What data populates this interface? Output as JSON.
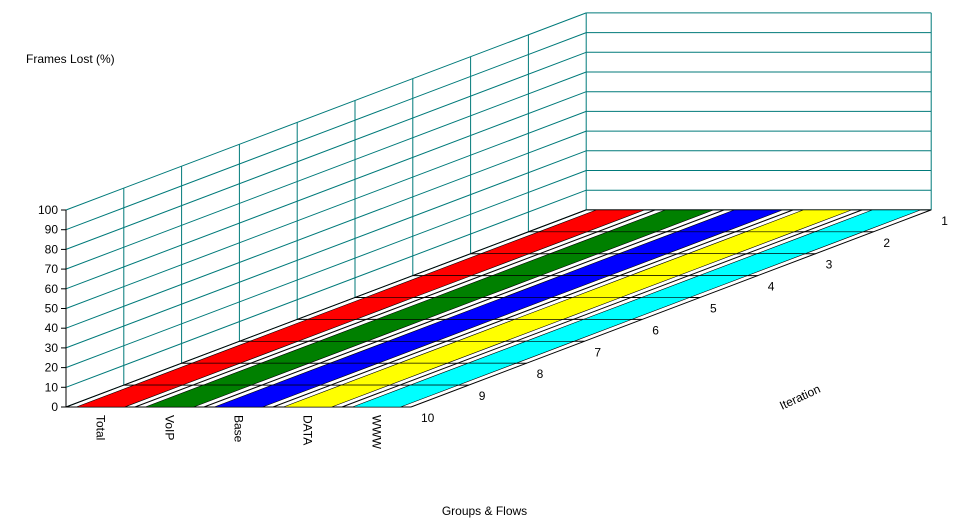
{
  "chart_data": {
    "type": "3d-ribbon",
    "ylabel": "Frames Lost (%)",
    "xlabel": "Groups & Flows",
    "zlabel": "Iteration",
    "ylim": [
      0,
      100
    ],
    "yticks": [
      "0",
      "10",
      "20",
      "30",
      "40",
      "50",
      "60",
      "70",
      "80",
      "90",
      "100"
    ],
    "groups": [
      "Total",
      "VoIP",
      "Base",
      "DATA",
      "WWW"
    ],
    "iterations": [
      "1",
      "2",
      "3",
      "4",
      "5",
      "6",
      "7",
      "8",
      "9",
      "10"
    ],
    "series": [
      {
        "name": "Total",
        "color": "#ff0000",
        "values": [
          0,
          0,
          0,
          0,
          0,
          0,
          0,
          0,
          0,
          0
        ]
      },
      {
        "name": "VoIP",
        "color": "#008000",
        "values": [
          0,
          0,
          0,
          0,
          0,
          0,
          0,
          0,
          0,
          0
        ]
      },
      {
        "name": "Base",
        "color": "#0000ff",
        "values": [
          0,
          0,
          0,
          0,
          0,
          0,
          0,
          0,
          0,
          0
        ]
      },
      {
        "name": "DATA",
        "color": "#ffff00",
        "values": [
          0,
          0,
          0,
          0,
          0,
          0,
          0,
          0,
          0,
          0
        ]
      },
      {
        "name": "WWW",
        "color": "#00ffff",
        "values": [
          0,
          0,
          0,
          0,
          0,
          0,
          0,
          0,
          0,
          0
        ]
      }
    ]
  }
}
